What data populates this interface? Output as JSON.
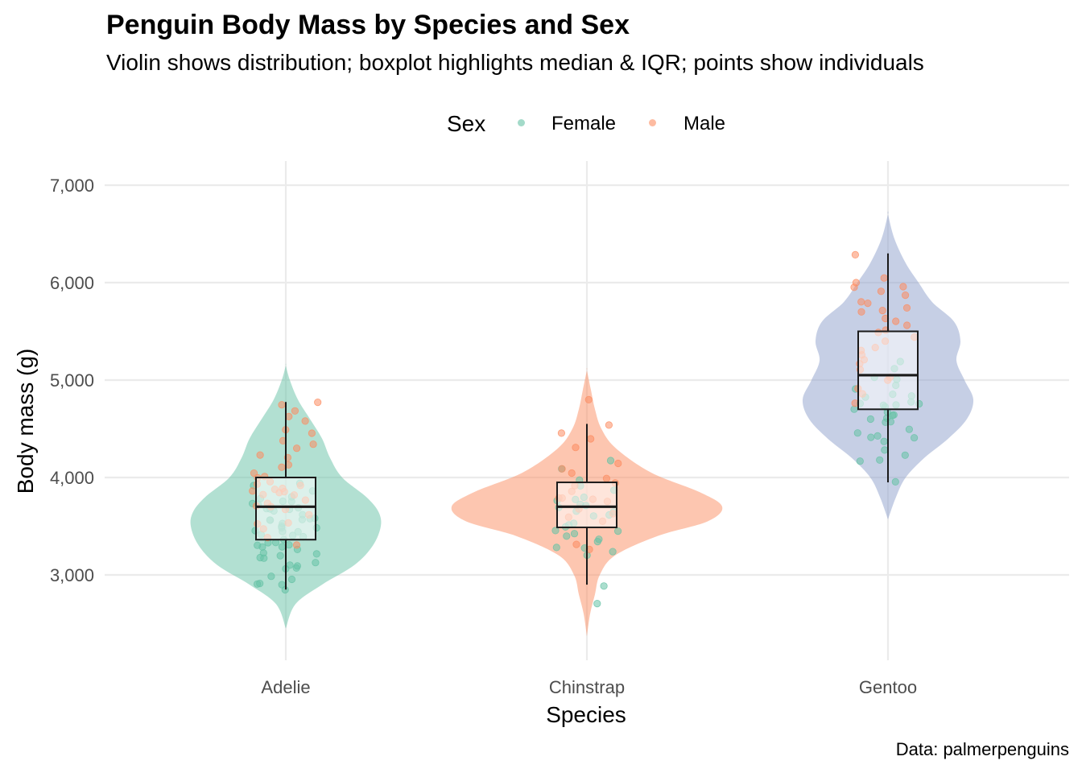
{
  "title": "Penguin Body Mass by Species and Sex",
  "subtitle": "Violin shows distribution; boxplot highlights median & IQR; points show individuals",
  "caption": "Data: palmerpenguins",
  "legend": {
    "title": "Sex",
    "items": [
      {
        "label": "Female",
        "color": "#66C2A5"
      },
      {
        "label": "Male",
        "color": "#FC8D62"
      }
    ]
  },
  "chart_data": {
    "type": "violin",
    "xlabel": "Species",
    "ylabel": "Body mass (g)",
    "categories": [
      "Adelie",
      "Chinstrap",
      "Gentoo"
    ],
    "ylim": [
      2100,
      7100
    ],
    "yticks": [
      3000,
      4000,
      5000,
      6000,
      7000
    ],
    "ytick_labels": [
      "3,000",
      "4,000",
      "5,000",
      "6,000",
      "7,000"
    ],
    "grid": true,
    "legend_position": "top",
    "violin_colors": [
      "#66C2A5",
      "#FC8D62",
      "#8DA0CB"
    ],
    "violins": [
      {
        "species": "Adelie",
        "profile": [
          [
            2450,
            0
          ],
          [
            2700,
            12
          ],
          [
            2900,
            45
          ],
          [
            3100,
            85
          ],
          [
            3300,
            108
          ],
          [
            3500,
            118
          ],
          [
            3650,
            115
          ],
          [
            3800,
            100
          ],
          [
            4000,
            70
          ],
          [
            4200,
            55
          ],
          [
            4400,
            45
          ],
          [
            4600,
            30
          ],
          [
            4800,
            15
          ],
          [
            5000,
            5
          ],
          [
            5150,
            0
          ]
        ]
      },
      {
        "species": "Chinstrap",
        "profile": [
          [
            2370,
            0
          ],
          [
            2600,
            4
          ],
          [
            2800,
            10
          ],
          [
            3000,
            16
          ],
          [
            3200,
            35
          ],
          [
            3400,
            88
          ],
          [
            3550,
            150
          ],
          [
            3700,
            168
          ],
          [
            3850,
            140
          ],
          [
            4050,
            80
          ],
          [
            4300,
            36
          ],
          [
            4500,
            18
          ],
          [
            4700,
            10
          ],
          [
            4900,
            5
          ],
          [
            5100,
            0
          ]
        ]
      },
      {
        "species": "Gentoo",
        "profile": [
          [
            3570,
            0
          ],
          [
            3800,
            10
          ],
          [
            4000,
            22
          ],
          [
            4200,
            45
          ],
          [
            4400,
            75
          ],
          [
            4600,
            98
          ],
          [
            4800,
            106
          ],
          [
            5000,
            95
          ],
          [
            5200,
            85
          ],
          [
            5400,
            90
          ],
          [
            5600,
            82
          ],
          [
            5800,
            55
          ],
          [
            6000,
            38
          ],
          [
            6200,
            22
          ],
          [
            6450,
            8
          ],
          [
            6700,
            0
          ]
        ]
      }
    ],
    "boxplots": [
      {
        "species": "Adelie",
        "min": 2850,
        "q1": 3362,
        "median": 3700,
        "q3": 4000,
        "max": 4775
      },
      {
        "species": "Chinstrap",
        "min": 2900,
        "q1": 3488,
        "median": 3700,
        "q3": 3950,
        "max": 4550
      },
      {
        "species": "Gentoo",
        "min": 3950,
        "q1": 4700,
        "median": 5050,
        "q3": 5500,
        "max": 6300
      }
    ],
    "points": [
      {
        "species": "Adelie",
        "sex": "Female",
        "values": [
          2850,
          2900,
          2900,
          2925,
          2950,
          3000,
          3050,
          3050,
          3075,
          3100,
          3150,
          3150,
          3175,
          3200,
          3200,
          3250,
          3250,
          3275,
          3300,
          3300,
          3325,
          3325,
          3350,
          3350,
          3400,
          3400,
          3400,
          3425,
          3450,
          3450,
          3475,
          3500,
          3500,
          3525,
          3550,
          3550,
          3575,
          3600,
          3600,
          3625,
          3650,
          3650,
          3675,
          3700,
          3700,
          3725,
          3750,
          3750,
          3775,
          3800,
          3800,
          3850,
          3900,
          3950
        ]
      },
      {
        "species": "Adelie",
        "sex": "Male",
        "values": [
          3325,
          3400,
          3450,
          3500,
          3550,
          3600,
          3650,
          3700,
          3700,
          3725,
          3750,
          3800,
          3800,
          3825,
          3850,
          3875,
          3900,
          3900,
          3925,
          3950,
          3950,
          3975,
          4000,
          4050,
          4100,
          4150,
          4200,
          4250,
          4300,
          4350,
          4400,
          4450,
          4500,
          4600,
          4650,
          4700,
          4725,
          4775
        ]
      },
      {
        "species": "Chinstrap",
        "sex": "Female",
        "values": [
          2700,
          2900,
          3200,
          3250,
          3275,
          3300,
          3325,
          3350,
          3400,
          3400,
          3450,
          3450,
          3500,
          3525,
          3550,
          3600,
          3600,
          3650,
          3650,
          3675,
          3700,
          3725,
          3750,
          3775,
          3800,
          3850,
          3900,
          3950,
          4100,
          4150
        ]
      },
      {
        "species": "Chinstrap",
        "sex": "Male",
        "values": [
          3250,
          3300,
          3550,
          3600,
          3650,
          3700,
          3750,
          3775,
          3800,
          3800,
          3850,
          3900,
          3950,
          4000,
          4050,
          4100,
          4150,
          4300,
          4400,
          4450,
          4550,
          4800
        ]
      },
      {
        "species": "Gentoo",
        "sex": "Female",
        "values": [
          3950,
          4150,
          4200,
          4250,
          4300,
          4350,
          4400,
          4400,
          4450,
          4450,
          4500,
          4550,
          4550,
          4600,
          4600,
          4625,
          4650,
          4650,
          4700,
          4700,
          4725,
          4750,
          4750,
          4775,
          4800,
          4800,
          4850,
          4875,
          4900,
          4925,
          5000,
          5050,
          5100,
          5200
        ]
      },
      {
        "species": "Gentoo",
        "sex": "Male",
        "values": [
          4750,
          4850,
          4900,
          5000,
          5050,
          5100,
          5150,
          5200,
          5250,
          5300,
          5350,
          5400,
          5450,
          5500,
          5500,
          5550,
          5600,
          5650,
          5700,
          5700,
          5750,
          5800,
          5800,
          5850,
          5900,
          5950,
          5950,
          6000,
          6050,
          6300
        ]
      }
    ]
  }
}
